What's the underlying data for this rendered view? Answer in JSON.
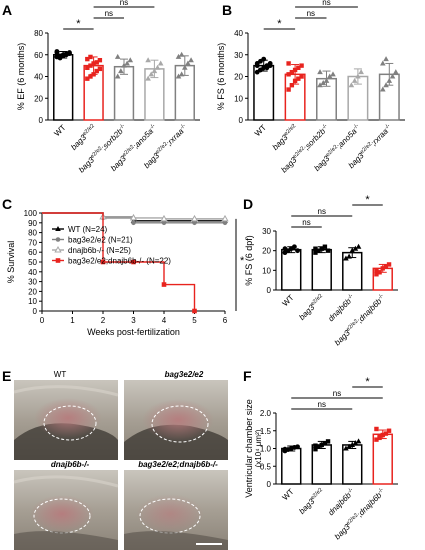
{
  "panels": {
    "A": "A",
    "B": "B",
    "C": "C",
    "D": "D",
    "E": "E",
    "F": "F"
  },
  "colors": {
    "black": "#000000",
    "red": "#e8231e",
    "gray": "#808080",
    "gray_light": "#a8a8a8"
  },
  "images": {
    "labels": [
      "WT",
      "bag3e2/e2",
      "dnajb6b-/-",
      "bag3e2/e2;dnajb6b-/-"
    ]
  },
  "chart_data": [
    {
      "panel": "A",
      "type": "bar",
      "ylabel": "% EF (6 months)",
      "ylim": [
        0,
        80
      ],
      "yticks": [
        "0",
        "20",
        "40",
        "60",
        "80"
      ],
      "categories": [
        "WT",
        "bag3e2/e2",
        "bag3e2/e2;sorb2b-/-",
        "bag3e2/e2;ano5a-/-",
        "bag3e2/e2;rxraa-/-"
      ],
      "values": [
        60,
        50,
        49,
        47,
        50
      ],
      "errors": [
        3,
        8,
        7,
        8,
        9
      ],
      "points": [
        [
          58,
          59,
          60,
          61,
          62,
          63,
          57,
          59,
          60,
          61,
          62,
          58
        ],
        [
          38,
          40,
          42,
          45,
          47,
          48,
          50,
          52,
          53,
          55,
          56,
          58
        ],
        [
          40,
          45,
          50,
          52,
          55,
          58
        ],
        [
          38,
          42,
          45,
          48,
          52,
          55
        ],
        [
          40,
          42,
          48,
          52,
          55,
          58,
          60
        ]
      ],
      "series_colors": [
        "#000000",
        "#e8231e",
        "#808080",
        "#a8a8a8",
        "#808080"
      ],
      "sig": [
        {
          "from": 0,
          "to": 1,
          "label": "*"
        },
        {
          "from": 1,
          "to": 2,
          "label": "ns"
        },
        {
          "from": 1,
          "to": 3,
          "label": "ns"
        },
        {
          "from": 1,
          "to": 4,
          "label": "ns"
        }
      ]
    },
    {
      "panel": "B",
      "type": "bar",
      "ylabel": "% FS (6 months)",
      "ylim": [
        0,
        40
      ],
      "yticks": [
        "0",
        "10",
        "20",
        "30",
        "40"
      ],
      "categories": [
        "WT",
        "bag3e2/e2",
        "bag3e2/e2;sorb2b-/-",
        "bag3e2/e2;ano5a-/-",
        "bag3e2/e2;rxraa-/-"
      ],
      "values": [
        25,
        21,
        19,
        20,
        21
      ],
      "errors": [
        2.5,
        4.5,
        3.5,
        3.5,
        5
      ],
      "points": [
        [
          22,
          23,
          24,
          25,
          25,
          26,
          27,
          28,
          24,
          26,
          25,
          23
        ],
        [
          14,
          16,
          18,
          19,
          20,
          21,
          22,
          23,
          24,
          25,
          26
        ],
        [
          16,
          17,
          18,
          20,
          21,
          22
        ],
        [
          16,
          18,
          20,
          22
        ],
        [
          14,
          16,
          18,
          20,
          22,
          26,
          28
        ]
      ],
      "series_colors": [
        "#000000",
        "#e8231e",
        "#808080",
        "#a8a8a8",
        "#808080"
      ],
      "sig": [
        {
          "from": 0,
          "to": 1,
          "label": "*"
        },
        {
          "from": 1,
          "to": 2,
          "label": "ns"
        },
        {
          "from": 1,
          "to": 3,
          "label": "ns"
        },
        {
          "from": 1,
          "to": 4,
          "label": "ns"
        }
      ]
    },
    {
      "panel": "C",
      "type": "line",
      "xlabel": "Weeks post-fertilization",
      "ylabel": "% Survival",
      "xlim": [
        0,
        6
      ],
      "ylim": [
        0,
        100
      ],
      "xticks": [
        "0",
        "1",
        "2",
        "3",
        "4",
        "5",
        "6"
      ],
      "yticks": [
        "0",
        "10",
        "20",
        "30",
        "40",
        "50",
        "60",
        "70",
        "80",
        "90",
        "100"
      ],
      "series": [
        {
          "name": "WT (N=24)",
          "color": "#000000",
          "marker": "triangle",
          "x": [
            0,
            2,
            3,
            4,
            5,
            6
          ],
          "y": [
            100,
            96,
            92,
            92,
            92,
            92
          ]
        },
        {
          "name": "bag3e2/e2 (N=21)",
          "color": "#808080",
          "marker": "circle",
          "x": [
            0,
            2,
            3,
            4,
            5,
            6
          ],
          "y": [
            100,
            95,
            90,
            90,
            90,
            90
          ]
        },
        {
          "name": "dnajb6b-/- (N=25)",
          "color": "#a8a8a8",
          "marker": "triangle-open",
          "x": [
            0,
            2,
            3,
            4,
            5,
            6
          ],
          "y": [
            100,
            96,
            95,
            94,
            94,
            94
          ]
        },
        {
          "name": "bag3e2/e2;dnajb6b-/- (N=22)",
          "color": "#e8231e",
          "marker": "square",
          "x": [
            0,
            2,
            3,
            4,
            5
          ],
          "y": [
            100,
            50,
            50,
            27,
            0
          ]
        }
      ],
      "sig_label": "*"
    },
    {
      "panel": "D",
      "type": "bar",
      "ylabel": "% FS (6 dpf)",
      "ylim": [
        0,
        30
      ],
      "yticks": [
        "0",
        "10",
        "20",
        "30"
      ],
      "categories": [
        "WT",
        "bag3e2/e2",
        "dnajb6b-/-",
        "bag3e2/e2;dnajb6b-/-"
      ],
      "values": [
        20.5,
        20.5,
        19,
        11
      ],
      "errors": [
        1.5,
        1.5,
        2.5,
        2
      ],
      "points": [
        [
          19,
          20,
          21,
          22,
          20,
          21
        ],
        [
          19,
          20,
          21,
          22,
          20,
          21
        ],
        [
          16,
          17,
          20,
          21,
          22
        ],
        [
          8,
          9,
          11,
          12,
          13,
          10
        ]
      ],
      "series_colors": [
        "#000000",
        "#000000",
        "#000000",
        "#e8231e"
      ],
      "sig": [
        {
          "from": 0,
          "to": 1,
          "label": "ns"
        },
        {
          "from": 0,
          "to": 2,
          "label": "ns"
        },
        {
          "from": 2,
          "to": 3,
          "label": "*"
        }
      ]
    },
    {
      "panel": "F",
      "type": "bar",
      "ylabel": "Ventricular chamber size",
      "ylabel2": "(x10⁴ μm²)",
      "ylim": [
        0,
        2.0
      ],
      "yticks": [
        "0",
        "0.5",
        "1.0",
        "1.5",
        "2.0"
      ],
      "categories": [
        "WT",
        "bag3e2/e2",
        "dnajb6b-/-",
        "bag3e2/e2;dnajb6b-/-"
      ],
      "values": [
        1.0,
        1.1,
        1.1,
        1.4
      ],
      "errors": [
        0.07,
        0.1,
        0.1,
        0.12
      ],
      "points": [
        [
          0.93,
          0.97,
          1.0,
          1.03,
          1.05,
          0.98
        ],
        [
          0.98,
          1.05,
          1.1,
          1.15,
          1.2,
          1.08
        ],
        [
          1.0,
          1.05,
          1.1,
          1.15,
          1.2
        ],
        [
          1.25,
          1.3,
          1.38,
          1.42,
          1.5,
          1.55,
          1.35
        ]
      ],
      "series_colors": [
        "#000000",
        "#000000",
        "#000000",
        "#e8231e"
      ],
      "sig": [
        {
          "from": 0,
          "to": 2,
          "label": "ns"
        },
        {
          "from": 0,
          "to": 3,
          "label": "ns"
        },
        {
          "from": 2,
          "to": 3,
          "label": "*"
        }
      ]
    }
  ]
}
